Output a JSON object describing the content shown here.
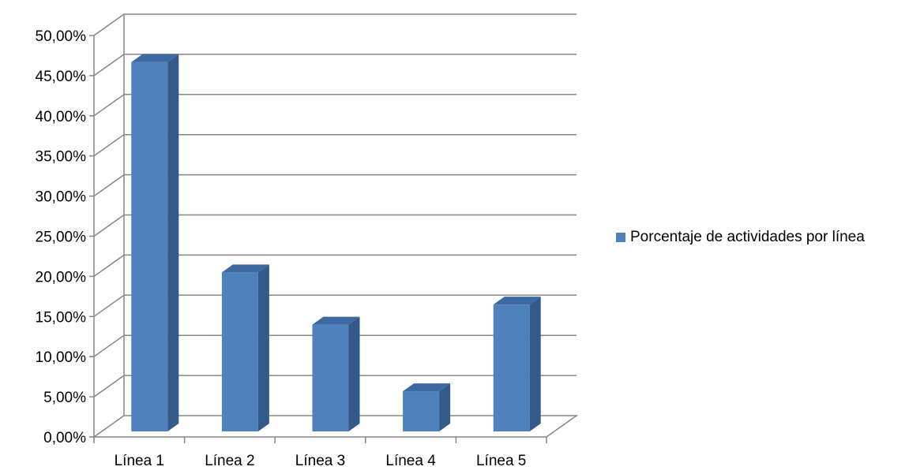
{
  "chart_data": {
    "type": "bar",
    "categories": [
      "Línea 1",
      "Línea 2",
      "Línea 3",
      "Línea 4",
      "Línea 5"
    ],
    "series": [
      {
        "name": "Porcentaje de actividades por línea",
        "values": [
          46.0,
          19.8,
          13.3,
          5.0,
          15.8
        ]
      }
    ],
    "yticks": [
      "0,00%",
      "5,00%",
      "10,00%",
      "15,00%",
      "20,00%",
      "25,00%",
      "30,00%",
      "35,00%",
      "40,00%",
      "45,00%",
      "50,00%"
    ],
    "ylim": [
      0,
      50
    ],
    "grid": true,
    "legend_position": "right",
    "style": "3d-column",
    "colors": {
      "bar_front": "#4f81bd",
      "bar_side": "#345a8a",
      "bar_top": "#3d6aa3",
      "grid": "#868686",
      "axis": "#868686"
    }
  }
}
